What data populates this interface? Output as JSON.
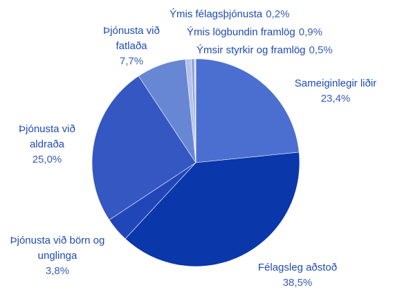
{
  "chart_data": {
    "type": "pie",
    "categories": [
      "Sameiginlegir liðir",
      "Félagsleg aðstoð",
      "Þjónusta við börn og unglinga",
      "Þjónusta við aldraða",
      "Þjónusta við fatlaða",
      "Ýmis lögbundin framlög",
      "Ýmsir styrkir og framlög",
      "Ýmis félagsþjónusta"
    ],
    "values": [
      23.4,
      38.5,
      3.8,
      25.0,
      7.7,
      0.9,
      0.5,
      0.2
    ],
    "value_labels": [
      "23,4%",
      "38,5%",
      "3,8%",
      "25,0%",
      "7,7%",
      "0,9%",
      "0,5%",
      "0,2%"
    ],
    "colors": [
      "#4b6fd0",
      "#0a37aa",
      "#2146b8",
      "#3457c2",
      "#6786d4",
      "#b4c2ec",
      "#8ea4e2",
      "#d6def5"
    ]
  }
}
